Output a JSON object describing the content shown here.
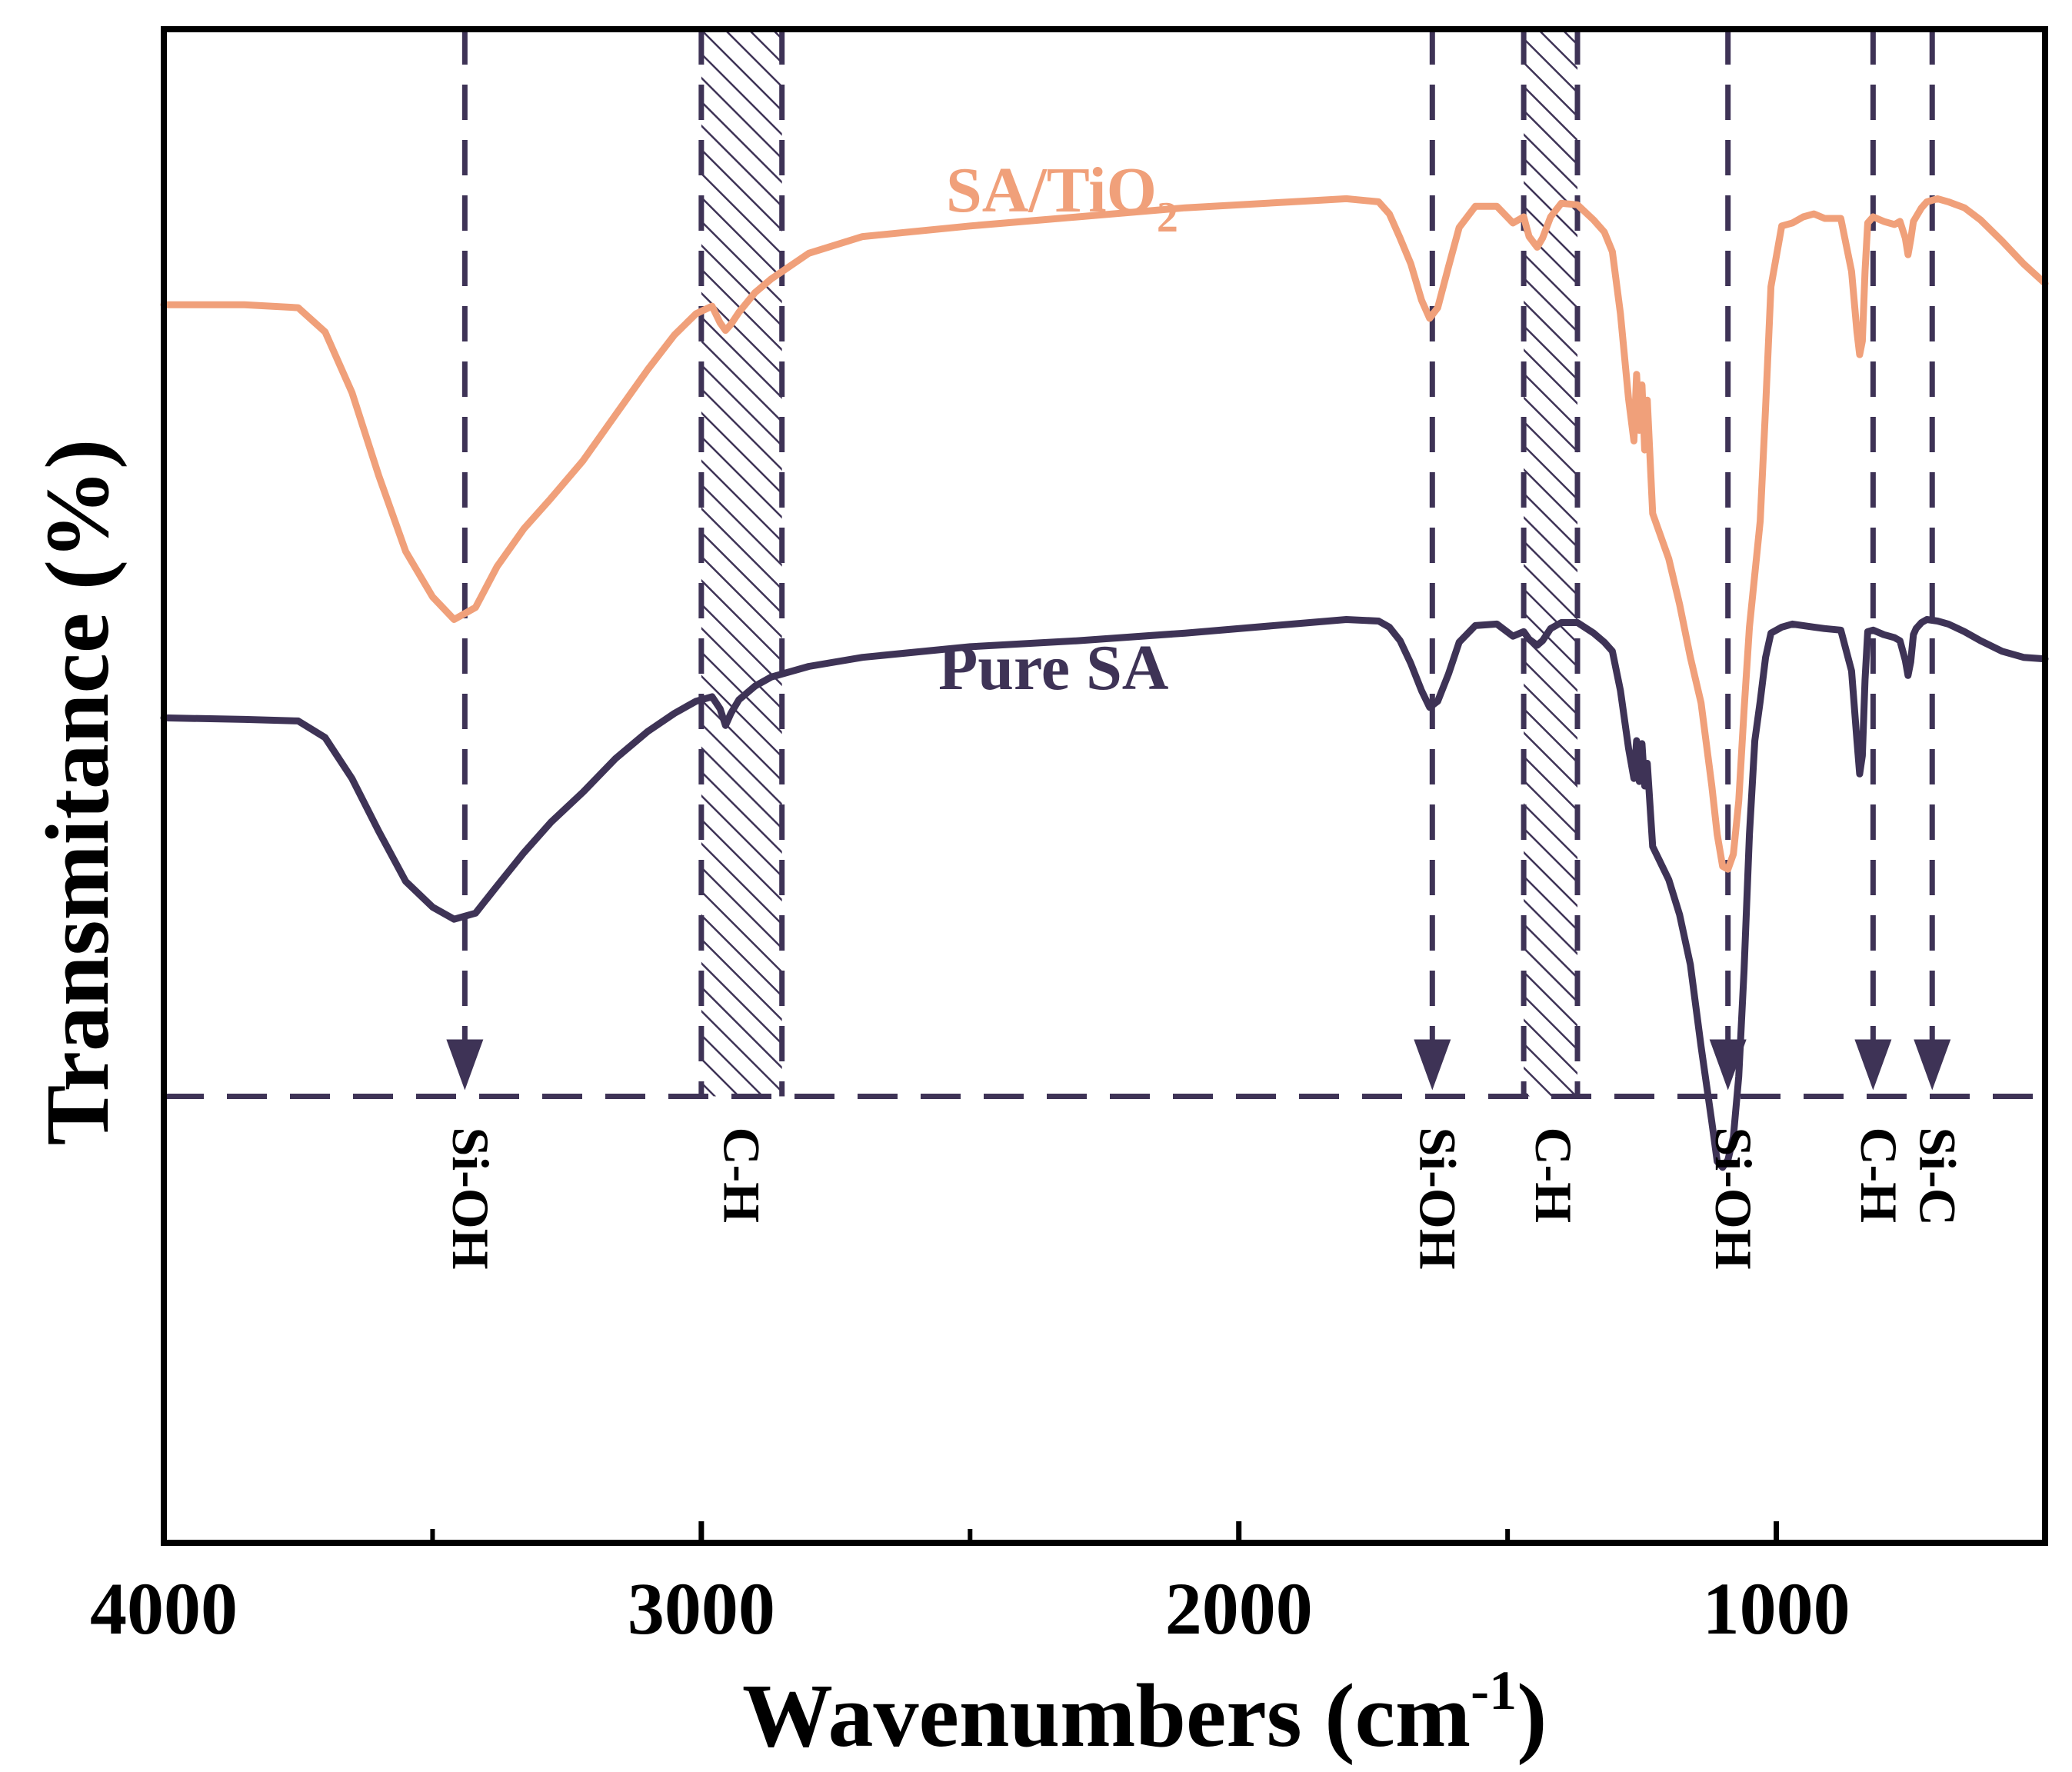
{
  "chart_data": {
    "type": "line",
    "title": "",
    "xlabel": "Wavenumbers (cm",
    "xlabel_sup": "-1",
    "xlabel_close": ")",
    "ylabel": "Transmitance (%)",
    "xlim": [
      4000,
      500
    ],
    "x_reversed": true,
    "ylim": [
      0,
      100
    ],
    "grid": false,
    "x_ticks": [
      4000,
      3000,
      2000,
      1000
    ],
    "x_tick_labels": [
      "4000",
      "3000",
      "2000",
      "1000"
    ],
    "x_minor_ticks": [
      3500,
      2500,
      1500
    ],
    "series": [
      {
        "name": "SA/TiO",
        "name_sub": "2",
        "color": "#F0A07A",
        "x": [
          4000,
          3850,
          3750,
          3700,
          3650,
          3600,
          3550,
          3500,
          3460,
          3420,
          3380,
          3330,
          3280,
          3220,
          3160,
          3100,
          3050,
          3010,
          2980,
          2965,
          2955,
          2945,
          2930,
          2900,
          2870,
          2800,
          2700,
          2500,
          2300,
          2100,
          1900,
          1800,
          1740,
          1720,
          1700,
          1680,
          1660,
          1645,
          1630,
          1610,
          1590,
          1560,
          1520,
          1490,
          1470,
          1460,
          1445,
          1435,
          1420,
          1400,
          1370,
          1340,
          1320,
          1305,
          1290,
          1275,
          1265,
          1260,
          1255,
          1250,
          1245,
          1240,
          1230,
          1200,
          1180,
          1160,
          1140,
          1120,
          1110,
          1100,
          1090,
          1080,
          1070,
          1060,
          1050,
          1040,
          1030,
          1020,
          1010,
          990,
          970,
          950,
          930,
          910,
          880,
          860,
          850,
          845,
          840,
          835,
          830,
          820,
          800,
          780,
          770,
          760,
          755,
          750,
          745,
          740,
          730,
          720,
          700,
          680,
          650,
          620,
          580,
          540,
          500
        ],
        "y": [
          81.8,
          81.8,
          81.6,
          80.0,
          76.0,
          70.5,
          65.5,
          62.5,
          61.0,
          61.8,
          64.5,
          67.0,
          69.0,
          71.5,
          74.5,
          77.5,
          79.8,
          81.2,
          81.7,
          80.6,
          80.1,
          80.5,
          81.3,
          82.6,
          83.5,
          85.2,
          86.3,
          87.0,
          87.6,
          88.2,
          88.6,
          88.8,
          88.6,
          87.8,
          86.2,
          84.5,
          82.1,
          80.9,
          81.6,
          84.3,
          86.9,
          88.3,
          88.3,
          87.2,
          87.6,
          86.3,
          85.6,
          86.2,
          87.6,
          88.5,
          88.4,
          87.4,
          86.6,
          85.3,
          81.2,
          75.6,
          72.8,
          77.2,
          73.5,
          76.5,
          72.2,
          75.5,
          68.0,
          65.0,
          62.0,
          58.5,
          55.5,
          50.0,
          46.8,
          44.7,
          44.5,
          45.5,
          49.0,
          55.0,
          60.5,
          64.0,
          67.5,
          75.0,
          83.0,
          87.0,
          87.2,
          87.6,
          87.8,
          87.5,
          87.5,
          84.0,
          80.0,
          78.5,
          79.4,
          84.0,
          87.2,
          87.6,
          87.3,
          87.1,
          87.3,
          86.2,
          85.1,
          86.1,
          87.3,
          87.6,
          88.2,
          88.6,
          88.8,
          88.6,
          88.2,
          87.4,
          86.0,
          84.5,
          83.2
        ]
      },
      {
        "name": "Pure SA",
        "color": "#3E3356",
        "x": [
          4000,
          3850,
          3750,
          3700,
          3650,
          3600,
          3550,
          3500,
          3460,
          3420,
          3380,
          3330,
          3280,
          3220,
          3160,
          3100,
          3050,
          3010,
          2980,
          2965,
          2955,
          2945,
          2930,
          2900,
          2870,
          2800,
          2700,
          2500,
          2300,
          2100,
          1900,
          1800,
          1740,
          1720,
          1700,
          1680,
          1660,
          1645,
          1630,
          1610,
          1590,
          1560,
          1520,
          1490,
          1470,
          1460,
          1445,
          1435,
          1420,
          1400,
          1370,
          1340,
          1320,
          1305,
          1290,
          1275,
          1265,
          1260,
          1255,
          1250,
          1245,
          1240,
          1230,
          1200,
          1180,
          1160,
          1140,
          1120,
          1110,
          1100,
          1090,
          1080,
          1070,
          1060,
          1050,
          1040,
          1030,
          1020,
          1010,
          990,
          970,
          950,
          930,
          910,
          880,
          860,
          850,
          845,
          840,
          835,
          830,
          820,
          800,
          780,
          770,
          760,
          755,
          750,
          745,
          740,
          730,
          720,
          700,
          680,
          650,
          620,
          580,
          540,
          500
        ],
        "y": [
          54.5,
          54.4,
          54.3,
          53.2,
          50.5,
          47.0,
          43.7,
          42.0,
          41.2,
          41.6,
          43.4,
          45.6,
          47.6,
          49.6,
          51.8,
          53.6,
          54.8,
          55.6,
          55.9,
          55.1,
          54.0,
          54.8,
          55.7,
          56.6,
          57.2,
          57.9,
          58.5,
          59.2,
          59.6,
          60.1,
          60.7,
          61.0,
          60.9,
          60.5,
          59.6,
          58.1,
          56.3,
          55.2,
          55.6,
          57.4,
          59.5,
          60.6,
          60.7,
          59.9,
          60.2,
          59.7,
          59.3,
          59.6,
          60.4,
          60.8,
          60.8,
          60.1,
          59.5,
          58.9,
          56.3,
          52.5,
          50.5,
          53.0,
          50.3,
          52.8,
          50.0,
          51.5,
          46.0,
          43.8,
          41.5,
          38.2,
          32.8,
          27.8,
          25.2,
          24.8,
          25.3,
          26.8,
          30.8,
          37.8,
          46.8,
          53.0,
          55.6,
          58.5,
          60.1,
          60.5,
          60.7,
          60.6,
          60.5,
          60.4,
          60.3,
          57.6,
          53.0,
          50.8,
          52.0,
          57.0,
          60.2,
          60.3,
          60.0,
          59.8,
          59.6,
          58.3,
          57.3,
          58.2,
          60.0,
          60.4,
          60.8,
          61.0,
          60.9,
          60.7,
          60.2,
          59.6,
          58.9,
          58.5,
          58.4
        ]
      }
    ],
    "series_labels": [
      {
        "text": "SA/TiO",
        "sub": "2",
        "x": 2700,
        "y": 93.0,
        "color": "#F0A07A"
      },
      {
        "text": "Pure SA",
        "x": 2700,
        "y": 64.0,
        "color": "#3E3356"
      }
    ],
    "baseline_y": 29.5,
    "markers": [
      {
        "x": 3440,
        "label": "Si-OH"
      },
      {
        "x": 1640,
        "label": "Si-OH"
      },
      {
        "x": 1090,
        "label": "Si-OH"
      },
      {
        "x": 820,
        "label": "C-H"
      },
      {
        "x": 710,
        "label": "Si-C"
      }
    ],
    "bands": [
      {
        "x_from": 3000,
        "x_to": 2850,
        "label": "C-H",
        "label_x": 2935
      },
      {
        "x_from": 1470,
        "x_to": 1370,
        "label": "C-H",
        "label_x": 1425
      }
    ],
    "colors": {
      "axis": "#000000",
      "guide": "#3E3356",
      "sa_tio2": "#F0A07A",
      "pure_sa": "#3E3356"
    }
  }
}
